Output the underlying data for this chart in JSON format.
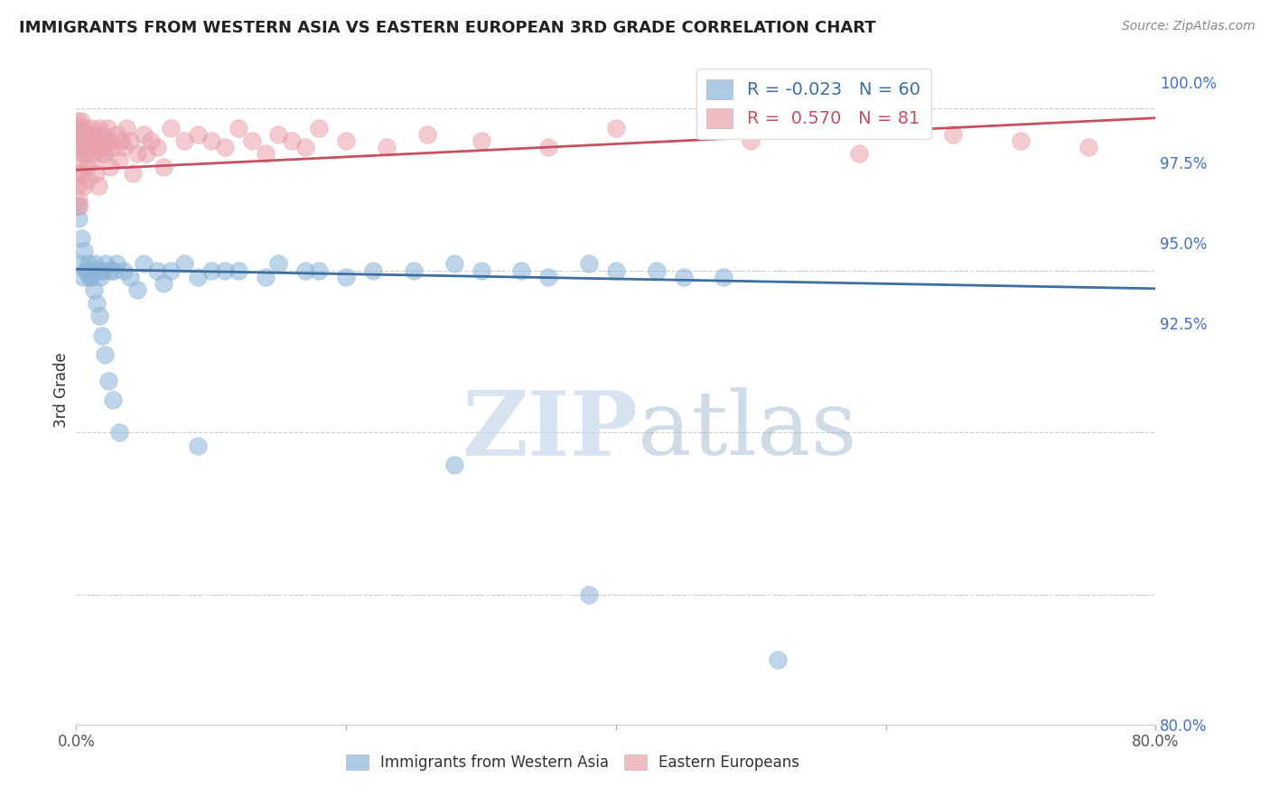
{
  "title": "IMMIGRANTS FROM WESTERN ASIA VS EASTERN EUROPEAN 3RD GRADE CORRELATION CHART",
  "source": "Source: ZipAtlas.com",
  "ylabel": "3rd Grade",
  "blue_R": -0.023,
  "blue_N": 60,
  "pink_R": 0.57,
  "pink_N": 81,
  "blue_color": "#8ab4d8",
  "pink_color": "#e8a0aa",
  "blue_line_color": "#3d6fa0",
  "pink_line_color": "#c85060",
  "watermark_zip": "ZIP",
  "watermark_atlas": "atlas",
  "yticks": [
    100.0,
    97.5,
    95.0,
    92.5,
    80.0
  ],
  "ytick_labels": [
    "100.0%",
    "97.5%",
    "95.0%",
    "92.5%",
    "80.0%"
  ],
  "xtick_labels": [
    "0.0%",
    "",
    "",
    "",
    "80.0%"
  ],
  "ymin": 90.5,
  "ymax": 100.8,
  "xmin": 0,
  "xmax": 80,
  "blue_x": [
    0.3,
    0.5,
    0.7,
    0.9,
    1.0,
    1.2,
    1.4,
    1.6,
    1.8,
    2.0,
    2.2,
    2.5,
    2.8,
    3.0,
    3.5,
    4.0,
    5.0,
    6.0,
    7.0,
    8.0,
    10.0,
    12.0,
    15.0,
    18.0,
    22.0,
    28.0,
    33.0,
    38.0,
    43.0,
    48.0,
    0.1,
    0.2,
    0.4,
    0.6,
    0.8,
    1.1,
    1.3,
    1.5,
    1.7,
    1.9,
    2.1,
    2.4,
    2.7,
    3.2,
    4.5,
    6.5,
    9.0,
    11.0,
    14.0,
    17.0,
    20.0,
    25.0,
    30.0,
    35.0,
    40.0,
    45.0,
    9.0,
    28.0,
    38.0,
    52.0
  ],
  "blue_y": [
    97.6,
    97.4,
    97.5,
    97.6,
    97.4,
    97.5,
    97.6,
    97.5,
    97.4,
    97.5,
    97.6,
    97.5,
    97.5,
    97.6,
    97.5,
    97.4,
    97.6,
    97.5,
    97.5,
    97.6,
    97.5,
    97.5,
    97.6,
    97.5,
    97.5,
    97.6,
    97.5,
    97.6,
    97.5,
    97.4,
    98.5,
    98.3,
    98.0,
    97.8,
    97.5,
    97.4,
    97.2,
    97.0,
    96.8,
    96.5,
    96.2,
    95.8,
    95.5,
    95.0,
    97.2,
    97.3,
    97.4,
    97.5,
    97.4,
    97.5,
    97.4,
    97.5,
    97.5,
    97.4,
    97.5,
    97.4,
    94.8,
    94.5,
    92.5,
    91.5
  ],
  "pink_x": [
    0.1,
    0.15,
    0.2,
    0.25,
    0.3,
    0.35,
    0.4,
    0.5,
    0.6,
    0.7,
    0.8,
    0.9,
    1.0,
    1.1,
    1.2,
    1.3,
    1.4,
    1.5,
    1.6,
    1.7,
    1.8,
    1.9,
    2.0,
    2.1,
    2.2,
    2.3,
    2.5,
    2.7,
    3.0,
    3.3,
    3.5,
    3.7,
    4.0,
    4.5,
    5.0,
    5.5,
    6.0,
    7.0,
    8.0,
    9.0,
    10.0,
    11.0,
    12.0,
    13.0,
    14.0,
    15.0,
    16.0,
    17.0,
    18.0,
    20.0,
    23.0,
    26.0,
    30.0,
    35.0,
    40.0,
    50.0,
    58.0,
    65.0,
    70.0,
    75.0,
    0.08,
    0.12,
    0.18,
    0.22,
    0.28,
    0.45,
    0.55,
    0.65,
    0.75,
    0.85,
    1.05,
    1.25,
    1.45,
    1.65,
    1.85,
    2.05,
    2.55,
    3.2,
    4.2,
    5.2,
    6.5
  ],
  "pink_y": [
    99.8,
    99.7,
    99.6,
    99.5,
    99.4,
    99.3,
    99.8,
    99.7,
    99.5,
    99.4,
    99.6,
    99.5,
    99.4,
    99.7,
    99.5,
    99.3,
    99.6,
    99.5,
    99.4,
    99.7,
    99.5,
    99.3,
    99.6,
    99.5,
    99.4,
    99.7,
    99.5,
    99.4,
    99.6,
    99.5,
    99.4,
    99.7,
    99.5,
    99.3,
    99.6,
    99.5,
    99.4,
    99.7,
    99.5,
    99.6,
    99.5,
    99.4,
    99.7,
    99.5,
    99.3,
    99.6,
    99.5,
    99.4,
    99.7,
    99.5,
    99.4,
    99.6,
    99.5,
    99.4,
    99.7,
    99.5,
    99.3,
    99.6,
    99.5,
    99.4,
    99.0,
    98.8,
    98.6,
    98.5,
    99.2,
    99.0,
    98.8,
    99.3,
    99.1,
    98.9,
    99.4,
    99.2,
    99.0,
    98.8,
    99.5,
    99.3,
    99.1,
    99.2,
    99.0,
    99.3,
    99.1
  ]
}
